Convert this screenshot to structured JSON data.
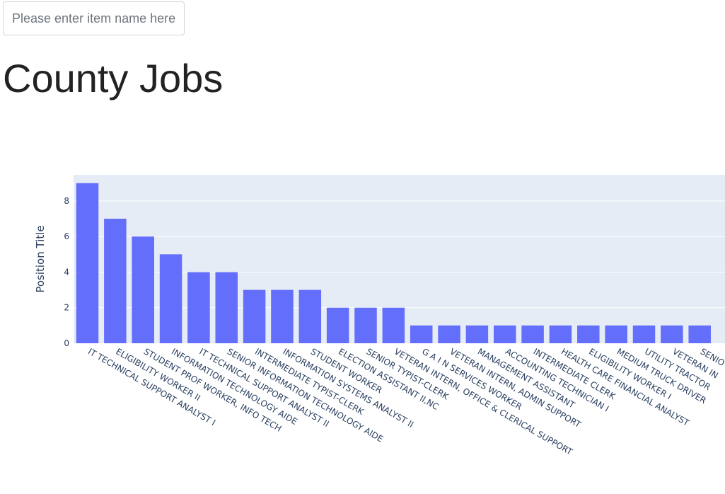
{
  "search": {
    "placeholder": "Please enter item name here",
    "value": ""
  },
  "page_title": "County Jobs",
  "chart_data": {
    "type": "bar",
    "title": "",
    "xlabel": "",
    "ylabel": "Position Title",
    "ylim": [
      0,
      9.47
    ],
    "yticks": [
      0,
      2,
      4,
      6,
      8
    ],
    "grid": true,
    "colors": {
      "bar": "#636efa",
      "plot_bg": "#e5ecf6",
      "grid": "#ffffff",
      "text": "#2a3f5f"
    },
    "categories": [
      "IT TECHNICAL SUPPORT ANALYST I",
      "ELIGIBILITY WORKER II",
      "STUDENT PROF WORKER, INFO TECH",
      "INFORMATION TECHNOLOGY AIDE",
      "IT TECHNICAL SUPPORT ANALYST II",
      "SENIOR INFORMATION TECHNOLOGY AIDE",
      "INTERMEDIATE TYPIST-CLERK",
      "INFORMATION SYSTEMS ANALYST II",
      "STUDENT WORKER",
      "ELECTION ASSISTANT II,NC",
      "SENIOR TYPIST-CLERK",
      "VETERAN INTERN, OFFICE & CLERICAL SUPPORT",
      "G A I N SERVICES WORKER",
      "VETERAN INTERN, ADMIN SUPPORT",
      "MANAGEMENT ASSISTANT",
      "ACCOUNTING TECHNICIAN I",
      "INTERMEDIATE CLERK",
      "HEALTH CARE FINANCIAL ANALYST",
      "ELIGIBILITY WORKER I",
      "MEDIUM TRUCK DRIVER",
      "UTILITY TRACTOR",
      "VETERAN IN",
      "SENIO"
    ],
    "values": [
      9,
      7,
      6,
      5,
      4,
      4,
      3,
      3,
      3,
      2,
      2,
      2,
      1,
      1,
      1,
      1,
      1,
      1,
      1,
      1,
      1,
      1,
      1
    ]
  }
}
